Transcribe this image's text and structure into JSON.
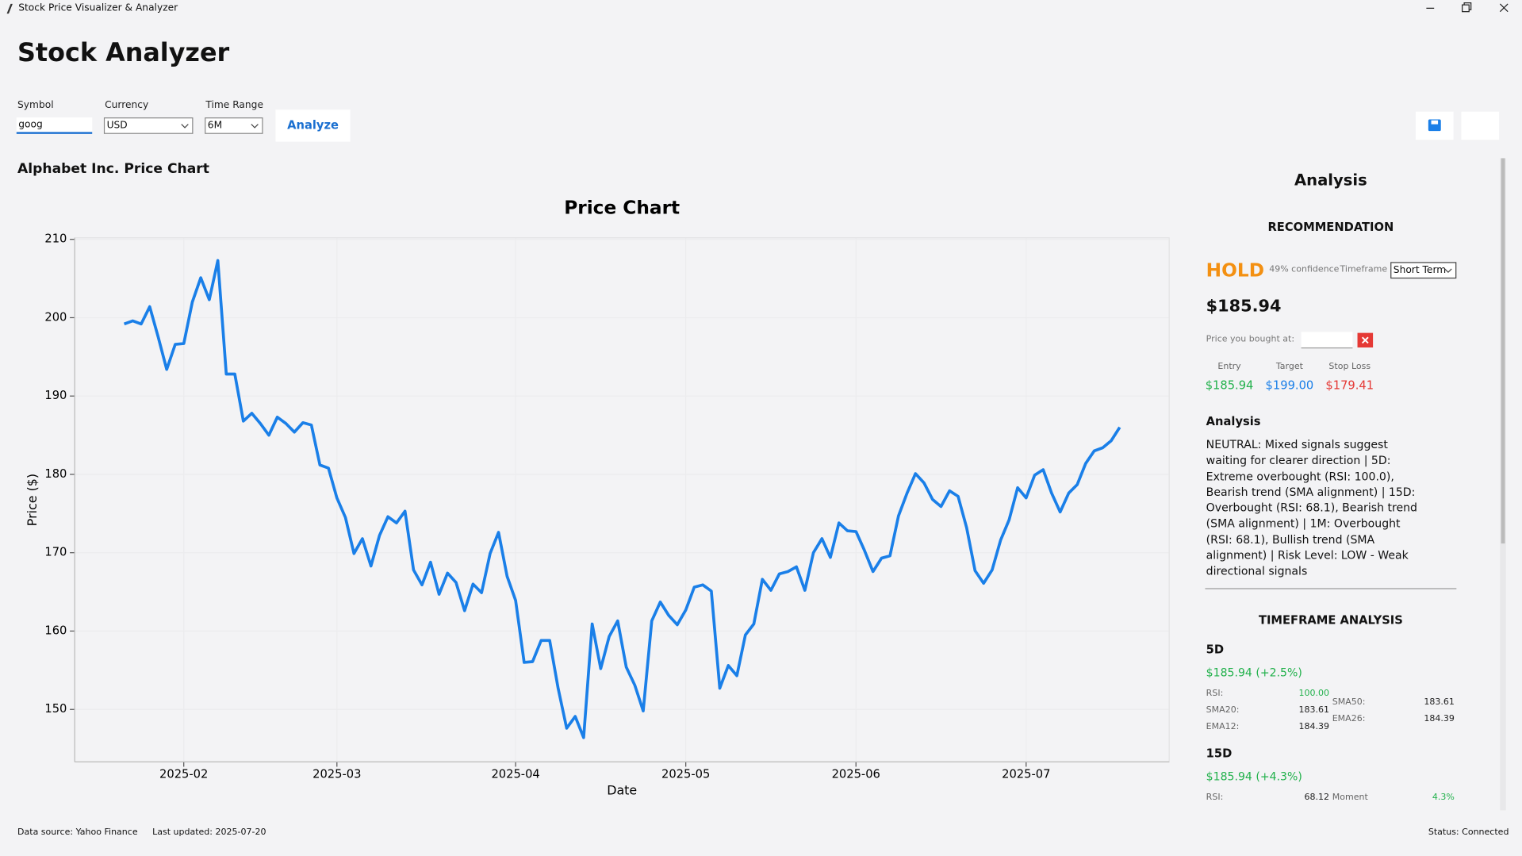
{
  "window": {
    "title": "Stock Price Visualizer & Analyzer"
  },
  "header": {
    "title": "Stock Analyzer"
  },
  "controls": {
    "symbol_label": "Symbol",
    "symbol_value": "goog",
    "currency_label": "Currency",
    "currency_value": "USD",
    "range_label": "Time Range",
    "range_value": "6M",
    "analyze_button": "Analyze"
  },
  "chart_panel": {
    "title": "Alphabet Inc. Price Chart"
  },
  "chart_data": {
    "type": "line",
    "title": "Price Chart",
    "x_label": "Date",
    "y_label": "Price ($)",
    "color": "#1a7fe8",
    "grid": true,
    "categories": [
      null,
      null,
      null,
      null,
      null,
      null,
      null,
      "2025-02",
      null,
      null,
      null,
      null,
      null,
      null,
      null,
      null,
      null,
      null,
      null,
      null,
      null,
      null,
      null,
      null,
      null,
      "2025-03",
      null,
      null,
      null,
      null,
      null,
      null,
      null,
      null,
      null,
      null,
      null,
      null,
      null,
      null,
      null,
      null,
      null,
      null,
      null,
      null,
      "2025-04",
      null,
      null,
      null,
      null,
      null,
      null,
      null,
      null,
      null,
      null,
      null,
      null,
      null,
      null,
      null,
      null,
      null,
      null,
      null,
      "2025-05",
      null,
      null,
      null,
      null,
      null,
      null,
      null,
      null,
      null,
      null,
      null,
      null,
      null,
      null,
      null,
      null,
      null,
      null,
      null,
      "2025-06",
      null,
      null,
      null,
      null,
      null,
      null,
      null,
      null,
      null,
      null,
      null,
      null,
      null,
      null,
      null,
      null,
      null,
      null,
      null,
      "2025-07",
      null,
      null,
      null,
      null,
      null,
      null,
      null,
      null,
      null,
      null,
      null
    ],
    "values": [
      199.2,
      199.6,
      199.2,
      201.4,
      197.5,
      193.4,
      196.6,
      196.7,
      202.0,
      205.1,
      202.3,
      207.3,
      192.8,
      192.8,
      186.8,
      187.8,
      186.5,
      185.0,
      187.3,
      186.5,
      185.4,
      186.6,
      186.3,
      181.2,
      180.8,
      177.0,
      174.5,
      169.9,
      171.8,
      168.3,
      172.2,
      174.6,
      173.8,
      175.3,
      167.8,
      165.9,
      168.8,
      164.7,
      167.4,
      166.2,
      162.6,
      166.0,
      164.9,
      169.9,
      172.6,
      167.0,
      163.9,
      156.0,
      156.1,
      158.8,
      158.8,
      152.7,
      147.6,
      149.1,
      146.4,
      160.9,
      155.2,
      159.3,
      161.3,
      155.4,
      153.1,
      149.8,
      161.3,
      163.7,
      162.0,
      160.8,
      162.7,
      165.6,
      165.9,
      165.1,
      152.7,
      155.6,
      154.3,
      159.5,
      160.9,
      166.6,
      165.2,
      167.3,
      167.6,
      168.2,
      165.2,
      170.0,
      171.8,
      169.4,
      173.8,
      172.8,
      172.7,
      170.3,
      167.6,
      169.3,
      169.6,
      174.7,
      177.6,
      180.1,
      178.9,
      176.8,
      175.9,
      177.9,
      177.2,
      173.2,
      167.7,
      166.1,
      167.8,
      171.6,
      174.2,
      178.3,
      177.0,
      179.9,
      180.6,
      177.6,
      175.2,
      177.6,
      178.7,
      181.4,
      183.0,
      183.4,
      184.3,
      186.0
    ],
    "ylim": [
      143.3,
      210.2
    ],
    "yticks": [
      150,
      160,
      170,
      180,
      190,
      200,
      210
    ]
  },
  "analysis": {
    "title": "Analysis",
    "recommendation_heading": "RECOMMENDATION",
    "signal": "HOLD",
    "confidence": "49% confidence",
    "timeframe_label": "Timeframe",
    "timeframe_value": "Short Term",
    "price": "$185.94",
    "bought_label": "Price you bought at:",
    "levels": [
      {
        "label": "Entry",
        "value": "$185.94"
      },
      {
        "label": "Target",
        "value": "$199.00"
      },
      {
        "label": "Stop Loss",
        "value": "$179.41"
      }
    ],
    "analysis_heading": "Analysis",
    "analysis_text": "NEUTRAL: Mixed signals suggest waiting for clearer direction | 5D: Extreme overbought (RSI: 100.0), Bearish trend (SMA alignment) | 15D: Overbought (RSI: 68.1), Bearish trend (SMA alignment) | 1M: Overbought (RSI: 68.1), Bullish trend (SMA alignment) | Risk Level: LOW - Weak directional signals",
    "timeframe_heading": "TIMEFRAME ANALYSIS",
    "timeframes": [
      {
        "name": "5D",
        "change": "$185.94 (+2.5%)",
        "left": [
          {
            "label": "RSI:",
            "value": "100.00"
          },
          {
            "label": "SMA20:",
            "value": "183.61"
          },
          {
            "label": "EMA12:",
            "value": "184.39"
          }
        ],
        "right": [
          {
            "label": "SMA50:",
            "value": "183.61"
          },
          {
            "label": "EMA26:",
            "value": "184.39"
          }
        ]
      },
      {
        "name": "15D",
        "change": "$185.94 (+4.3%)",
        "left": [
          {
            "label": "RSI:",
            "value": "68.12"
          }
        ],
        "right": [
          {
            "label": "Moment",
            "value": "4.3%"
          }
        ]
      }
    ]
  },
  "footer": {
    "source": "Data source: Yahoo Finance",
    "updated": "Last updated: 2025-07-20",
    "status": "Status: Connected"
  }
}
